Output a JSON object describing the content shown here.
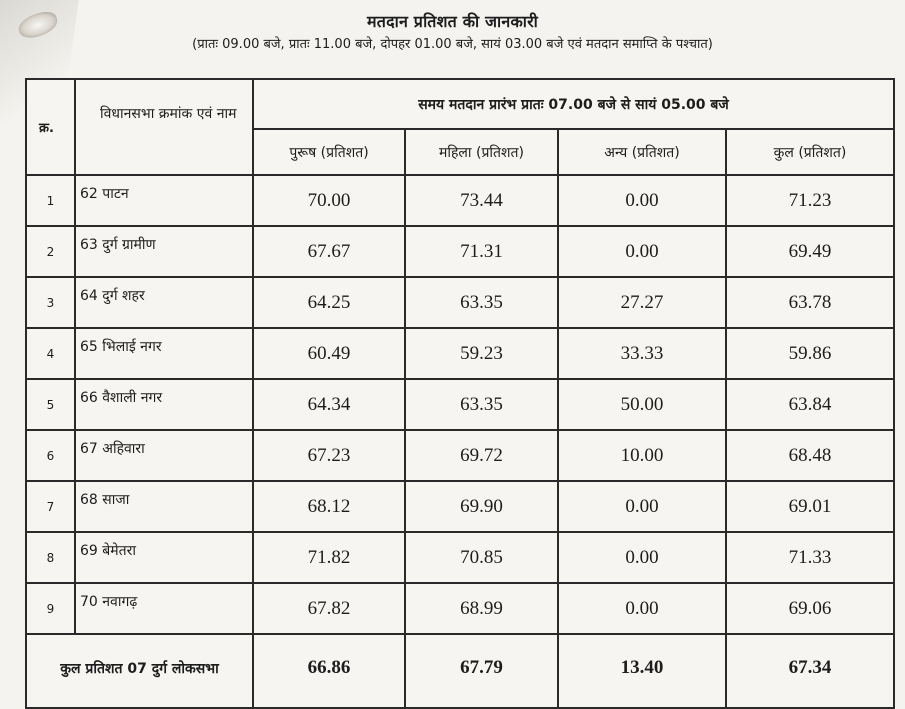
{
  "header": {
    "title": "मतदान प्रतिशत की जानकारी",
    "subtitle": "(प्रातः 09.00 बजे, प्रातः 11.00 बजे, दोपहर 01.00 बजे, सायं 03.00 बजे एवं मतदान समाप्ति के पश्चात)"
  },
  "table": {
    "serial_header": "क्र.",
    "name_header": "विधानसभा क्रमांक एवं नाम",
    "time_header": "समय मतदान प्रारंभ प्रातः 07.00 बजे से सायं 05.00 बजे",
    "columns": [
      "पुरूष (प्रतिशत)",
      "महिला (प्रतिशत)",
      "अन्य (प्रतिशत)",
      "कुल (प्रतिशत)"
    ],
    "rows": [
      {
        "sn": "1",
        "name": "62 पाटन",
        "male": "70.00",
        "female": "73.44",
        "other": "0.00",
        "total": "71.23"
      },
      {
        "sn": "2",
        "name": "63 दुर्ग ग्रामीण",
        "male": "67.67",
        "female": "71.31",
        "other": "0.00",
        "total": "69.49"
      },
      {
        "sn": "3",
        "name": "64 दुर्ग शहर",
        "male": "64.25",
        "female": "63.35",
        "other": "27.27",
        "total": "63.78"
      },
      {
        "sn": "4",
        "name": "65 भिलाई नगर",
        "male": "60.49",
        "female": "59.23",
        "other": "33.33",
        "total": "59.86"
      },
      {
        "sn": "5",
        "name": "66 वैशाली नगर",
        "male": "64.34",
        "female": "63.35",
        "other": "50.00",
        "total": "63.84"
      },
      {
        "sn": "6",
        "name": "67 अहिवारा",
        "male": "67.23",
        "female": "69.72",
        "other": "10.00",
        "total": "68.48"
      },
      {
        "sn": "7",
        "name": "68 साजा",
        "male": "68.12",
        "female": "69.90",
        "other": "0.00",
        "total": "69.01"
      },
      {
        "sn": "8",
        "name": "69 बेमेतरा",
        "male": "71.82",
        "female": "70.85",
        "other": "0.00",
        "total": "71.33"
      },
      {
        "sn": "9",
        "name": "70 नवागढ़",
        "male": "67.82",
        "female": "68.99",
        "other": "0.00",
        "total": "69.06"
      }
    ],
    "total_row": {
      "label": "कुल प्रतिशत 07 दुर्ग लोकसभा",
      "male": "66.86",
      "female": "67.79",
      "other": "13.40",
      "total": "67.34"
    }
  }
}
